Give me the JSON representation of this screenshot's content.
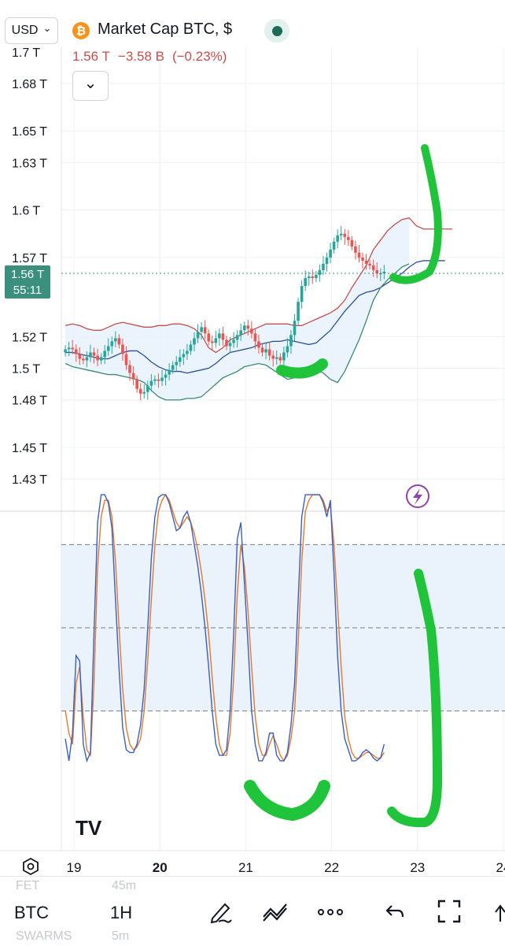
{
  "header": {
    "currency": "USD",
    "currency_caret": "⌄",
    "symbol_icon": "bitcoin-icon",
    "symbol_glyph": "₿",
    "title": "Market Cap BTC, $",
    "status_icon": "market-status-dot-icon",
    "price": "1.56 T",
    "change": "−3.58 B",
    "change_pct": "(−0.23%)",
    "collapse_icon": "chevron-down-icon",
    "collapse_glyph": "⌄"
  },
  "price_badge": {
    "value": "1.56 T",
    "countdown": "55:11"
  },
  "lightning_icon": "lightning-icon",
  "lightning_glyph": "⚡",
  "logo_text": "TV",
  "colors": {
    "bull": "#26a69a",
    "bear": "#ef5350",
    "upper_band": "#c0504d",
    "basis": "#2b4fa0",
    "lower_band": "#3a8a6e",
    "band_fill": "#e8f1fb",
    "stoch_k": "#3b5fc0",
    "stoch_d": "#e07a30",
    "marker": "#1fc43a",
    "badge": "#3a8f7d",
    "red_text": "#c94d4d"
  },
  "bottom": {
    "ghost_top_symbol": "FET",
    "ghost_top_interval": "45m",
    "symbol": "BTC",
    "interval": "1H",
    "ghost_bottom_symbol": "SWARMS",
    "ghost_bottom_interval": "5m",
    "tools": [
      "pen-tool-icon",
      "drawings-icon",
      "more-icon",
      "undo-icon",
      "fullscreen-icon",
      "menu-icon"
    ]
  },
  "chart_data": [
    {
      "type": "candlestick",
      "title": "Market Cap BTC, $",
      "x_ticks": [
        "19",
        "20",
        "21",
        "22",
        "23",
        "24"
      ],
      "y_ticks": [
        "1.7 T",
        "1.68 T",
        "1.65 T",
        "1.63 T",
        "1.6 T",
        "1.57 T",
        "1.52 T",
        "1.5 T",
        "1.48 T",
        "1.45 T",
        "1.43 T"
      ],
      "y_tick_values": [
        1.7,
        1.68,
        1.65,
        1.63,
        1.6,
        1.57,
        1.52,
        1.5,
        1.48,
        1.45,
        1.43
      ],
      "x_range": [
        18.9,
        24.05
      ],
      "y_range": [
        1.418,
        1.712
      ],
      "last_price": 1.56,
      "last_price_time": 23.0,
      "candles": {
        "start": 18.9,
        "step": 0.0417,
        "close": [
          1.512,
          1.513,
          1.512,
          1.509,
          1.506,
          1.505,
          1.507,
          1.51,
          1.508,
          1.505,
          1.507,
          1.511,
          1.514,
          1.517,
          1.519,
          1.515,
          1.509,
          1.502,
          1.497,
          1.493,
          1.487,
          1.484,
          1.485,
          1.489,
          1.492,
          1.493,
          1.492,
          1.494,
          1.496,
          1.499,
          1.502,
          1.504,
          1.507,
          1.509,
          1.511,
          1.515,
          1.519,
          1.523,
          1.526,
          1.522,
          1.517,
          1.516,
          1.519,
          1.522,
          1.518,
          1.514,
          1.516,
          1.518,
          1.521,
          1.524,
          1.527,
          1.525,
          1.522,
          1.517,
          1.513,
          1.51,
          1.512,
          1.508,
          1.506,
          1.507,
          1.505,
          1.51,
          1.514,
          1.521,
          1.53,
          1.542,
          1.552,
          1.557,
          1.558,
          1.557,
          1.559,
          1.562,
          1.566,
          1.57,
          1.575,
          1.58,
          1.584,
          1.585,
          1.583,
          1.581,
          1.577,
          1.573,
          1.57,
          1.568,
          1.566,
          1.565,
          1.562,
          1.56,
          1.56,
          1.561
        ]
      },
      "series": [
        {
          "name": "upper",
          "values": [
            1.527,
            1.528,
            1.527,
            1.525,
            1.524,
            1.524,
            1.526,
            1.528,
            1.529,
            1.528,
            1.527,
            1.526,
            1.526,
            1.527,
            1.527,
            1.528,
            1.528,
            1.527,
            1.525,
            1.521,
            1.513,
            1.51,
            1.513,
            1.518,
            1.52,
            1.522,
            1.524,
            1.526,
            1.528,
            1.528,
            1.528,
            1.528,
            1.527,
            1.527,
            1.529,
            1.531,
            1.533,
            1.535,
            1.538,
            1.543,
            1.551,
            1.558,
            1.565,
            1.575,
            1.581,
            1.587,
            1.591,
            1.594,
            1.595,
            1.59,
            1.588,
            1.588,
            1.588,
            1.588,
            1.588
          ]
        },
        {
          "name": "basis",
          "values": [
            1.51,
            1.51,
            1.509,
            1.508,
            1.507,
            1.506,
            1.506,
            1.508,
            1.51,
            1.511,
            1.511,
            1.508,
            1.504,
            1.501,
            1.499,
            1.498,
            1.498,
            1.497,
            1.498,
            1.499,
            1.5,
            1.503,
            1.507,
            1.51,
            1.511,
            1.512,
            1.513,
            1.515,
            1.516,
            1.517,
            1.517,
            1.518,
            1.517,
            1.516,
            1.515,
            1.516,
            1.52,
            1.524,
            1.53,
            1.536,
            1.541,
            1.546,
            1.548,
            1.549,
            1.551,
            1.554,
            1.557,
            1.56,
            1.564,
            1.567,
            1.568,
            1.568,
            1.568,
            1.568
          ]
        },
        {
          "name": "lower",
          "values": [
            1.503,
            1.501,
            1.5,
            1.499,
            1.498,
            1.497,
            1.496,
            1.496,
            1.495,
            1.494,
            1.493,
            1.491,
            1.486,
            1.482,
            1.48,
            1.48,
            1.48,
            1.481,
            1.481,
            1.482,
            1.486,
            1.49,
            1.494,
            1.496,
            1.498,
            1.501,
            1.502,
            1.503,
            1.502,
            1.499,
            1.496,
            1.493,
            1.494,
            1.496,
            1.498,
            1.499,
            1.497,
            1.493,
            1.491,
            1.498,
            1.508,
            1.518,
            1.53,
            1.543,
            1.551,
            1.556,
            1.56,
            1.564,
            1.566
          ]
        }
      ]
    },
    {
      "type": "line",
      "title": "",
      "x_range": [
        18.9,
        24.05
      ],
      "y_range": [
        -5,
        110
      ],
      "levels": [
        80,
        50,
        20
      ],
      "series": [
        {
          "name": "K",
          "values": [
            10,
            2,
            12,
            40,
            38,
            8,
            2,
            5,
            48,
            88,
            98,
            98,
            95,
            86,
            60,
            35,
            14,
            6,
            5,
            5,
            8,
            15,
            28,
            50,
            75,
            90,
            97,
            98,
            98,
            95,
            90,
            85,
            86,
            90,
            92,
            88,
            80,
            72,
            62,
            50,
            36,
            20,
            8,
            4,
            4,
            6,
            20,
            48,
            82,
            88,
            66,
            44,
            20,
            8,
            2,
            2,
            5,
            12,
            12,
            4,
            2,
            2,
            5,
            15,
            30,
            60,
            90,
            98,
            98,
            98,
            98,
            98,
            95,
            90,
            96,
            70,
            40,
            20,
            10,
            6,
            2,
            2,
            3,
            5,
            6,
            5,
            3,
            2,
            3,
            8
          ]
        },
        {
          "name": "D",
          "values": [
            20,
            12,
            8,
            30,
            36,
            18,
            6,
            4,
            30,
            72,
            90,
            96,
            96,
            90,
            74,
            50,
            28,
            14,
            8,
            6,
            7,
            10,
            20,
            38,
            60,
            80,
            92,
            96,
            98,
            96,
            92,
            88,
            86,
            88,
            90,
            88,
            84,
            78,
            70,
            60,
            48,
            32,
            18,
            8,
            4,
            4,
            12,
            32,
            62,
            80,
            72,
            56,
            36,
            18,
            8,
            4,
            4,
            8,
            11,
            8,
            4,
            2,
            4,
            10,
            20,
            44,
            74,
            92,
            96,
            98,
            98,
            98,
            96,
            92,
            94,
            80,
            58,
            36,
            18,
            10,
            5,
            3,
            3,
            4,
            5,
            5,
            4,
            3,
            3,
            5
          ]
        }
      ]
    }
  ]
}
